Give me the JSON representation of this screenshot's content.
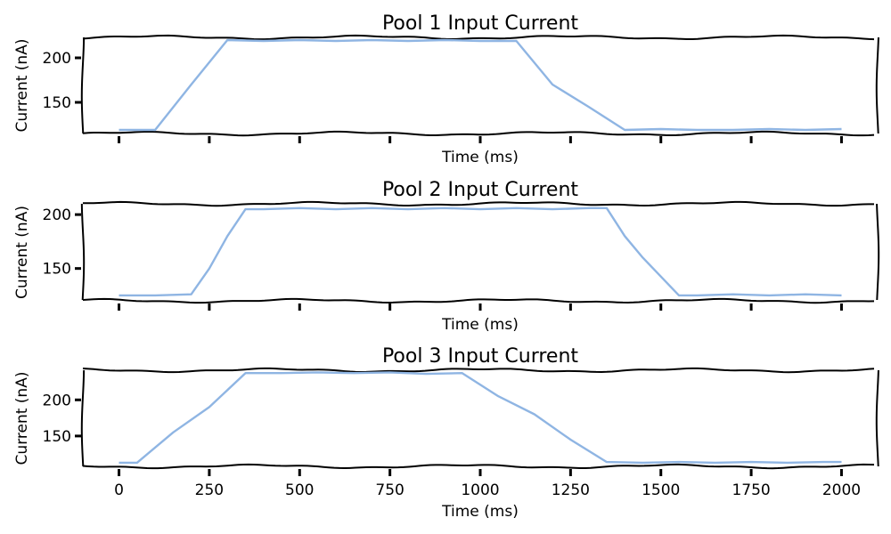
{
  "chart_data": [
    {
      "type": "line",
      "title": "Pool 1 Input Current",
      "xlabel": "Time (ms)",
      "ylabel": "Current (nA)",
      "xlim": [
        -100,
        2100
      ],
      "ylim": [
        115,
        223
      ],
      "x_ticks": [],
      "y_ticks": [
        150,
        200
      ],
      "series": [
        {
          "color": "#8fb5e3",
          "x": [
            0,
            100,
            200,
            300,
            400,
            500,
            600,
            700,
            800,
            900,
            1000,
            1100,
            1200,
            1300,
            1400,
            1500,
            1600,
            1700,
            1800,
            1900,
            2000
          ],
          "y": [
            119,
            119,
            170,
            220,
            219,
            220,
            219,
            220,
            219,
            220,
            219,
            219,
            170,
            145,
            119,
            120,
            119,
            119,
            120,
            119,
            120
          ]
        }
      ]
    },
    {
      "type": "line",
      "title": "Pool 2 Input Current",
      "xlabel": "Time (ms)",
      "ylabel": "Current (nA)",
      "xlim": [
        -100,
        2100
      ],
      "ylim": [
        120,
        210
      ],
      "x_ticks": [],
      "y_ticks": [
        150,
        200
      ],
      "series": [
        {
          "color": "#8fb5e3",
          "x": [
            0,
            100,
            200,
            250,
            300,
            350,
            400,
            500,
            600,
            700,
            800,
            900,
            1000,
            1100,
            1200,
            1300,
            1350,
            1400,
            1450,
            1550,
            1600,
            1700,
            1800,
            1900,
            2000
          ],
          "y": [
            125,
            125,
            126,
            150,
            180,
            205,
            205,
            206,
            205,
            206,
            205,
            206,
            205,
            206,
            205,
            206,
            206,
            180,
            160,
            125,
            125,
            126,
            125,
            126,
            125
          ]
        }
      ]
    },
    {
      "type": "line",
      "title": "Pool 3 Input Current",
      "xlabel": "Time (ms)",
      "ylabel": "Current (nA)",
      "xlim": [
        -100,
        2100
      ],
      "ylim": [
        108,
        241
      ],
      "x_ticks": [
        0,
        250,
        500,
        750,
        1000,
        1250,
        1500,
        1750,
        2000
      ],
      "y_ticks": [
        150,
        200
      ],
      "series": [
        {
          "color": "#8fb5e3",
          "x": [
            0,
            50,
            150,
            250,
            350,
            450,
            550,
            650,
            750,
            850,
            950,
            1050,
            1150,
            1250,
            1350,
            1450,
            1550,
            1650,
            1750,
            1850,
            1950,
            2000
          ],
          "y": [
            113,
            113,
            155,
            190,
            237,
            237,
            238,
            237,
            238,
            236,
            237,
            205,
            180,
            145,
            114,
            113,
            114,
            113,
            114,
            113,
            114,
            114
          ]
        }
      ]
    }
  ]
}
